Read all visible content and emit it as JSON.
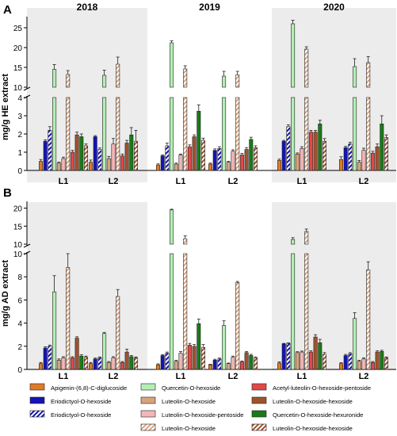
{
  "years": [
    "2018",
    "2019",
    "2020"
  ],
  "legend_items": [
    "Apigenin-(6,8)-C-diglucoside",
    "Quercetin-O-hexoside",
    "Acetyl-luteolin-O-hexoside-pentoside",
    "Eriodictyol-O-hexoside",
    "Luteolin-O-hexoside",
    "Luteolin-O-hexoside-hexoside",
    "Eriodictyol-O-hexoside",
    "Luteolin-O-hexoside-pentoside",
    "Quercetin-O-hexoside-hexuronide",
    "",
    "Luteolin-O-hexoside",
    "Luteolin-O-hexoside-hexoside"
  ],
  "chart_data": [
    {
      "type": "bar",
      "panel": "A",
      "ylabel": "mg/g HE extract",
      "upper_ylim": [
        10,
        27
      ],
      "upper_ticks": [
        10,
        15,
        20,
        25
      ],
      "lower_ylim": [
        0,
        4
      ],
      "lower_ticks": [
        0,
        1,
        2,
        3,
        4
      ],
      "groups": [
        "2018 L1",
        "2018 L2",
        "2019 L1",
        "2019 L2",
        "2020 L1",
        "2020 L2"
      ],
      "categories": [
        "L1",
        "L2",
        "L1",
        "L2",
        "L1",
        "L2"
      ],
      "series": [
        {
          "name": "Apigenin-(6,8)-C-diglucoside",
          "color": "#E07B28",
          "hatch": false,
          "values": [
            0.5,
            0.45,
            0.3,
            0.35,
            0.55,
            0.6
          ],
          "errors": [
            0.1,
            0.12,
            0.06,
            0.05,
            0.07,
            0.15
          ]
        },
        {
          "name": "Eriodictyol-O-hexoside",
          "color": "#1414B4",
          "hatch": false,
          "values": [
            1.6,
            1.85,
            0.8,
            1.1,
            1.6,
            1.25
          ],
          "errors": [
            0.08,
            0.06,
            0.05,
            0.08,
            0.05,
            0.07
          ]
        },
        {
          "name": "Eriodictyol-O-hexoside",
          "color": "#1414B4",
          "hatch": true,
          "values": [
            2.2,
            1.15,
            1.35,
            1.2,
            2.4,
            1.45
          ],
          "errors": [
            0.2,
            0.08,
            0.15,
            0.1,
            0.1,
            0.1
          ]
        },
        {
          "name": "Quercetin-O-hexoside",
          "color": "#B4EEB4",
          "hatch": false,
          "values": [
            14.5,
            13,
            21.2,
            12.8,
            26,
            15.2
          ],
          "errors": [
            1.2,
            1.3,
            0.5,
            1.2,
            0.9,
            2.0
          ]
        },
        {
          "name": "Luteolin-O-hexoside",
          "color": "#D9A37C",
          "hatch": false,
          "values": [
            0.4,
            0.65,
            0.35,
            0.45,
            0.9,
            0.45
          ],
          "errors": [
            0.05,
            0.12,
            0.05,
            0.05,
            0.06,
            0.1
          ]
        },
        {
          "name": "Luteolin-O-hexoside-pentoside",
          "color": "#F4B6B6",
          "hatch": false,
          "values": [
            0.65,
            1.45,
            0.85,
            1.05,
            1.2,
            1.1
          ],
          "errors": [
            0.08,
            0.3,
            0.05,
            0.08,
            0.1,
            0.12
          ]
        },
        {
          "name": "Luteolin-O-hexoside",
          "color": "#D9A37C",
          "hatch": true,
          "values": [
            13.2,
            15.8,
            14.6,
            13.1,
            19.6,
            16.2
          ],
          "errors": [
            1.0,
            1.8,
            0.8,
            0.9,
            0.6,
            1.5
          ]
        },
        {
          "name": "Acetyl-luteolin-O-hexoside-pentoside",
          "color": "#E24848",
          "hatch": false,
          "values": [
            1.0,
            0.8,
            1.3,
            0.85,
            2.1,
            0.95
          ],
          "errors": [
            0.1,
            0.1,
            0.1,
            0.08,
            0.1,
            0.1
          ]
        },
        {
          "name": "Luteolin-O-hexoside-hexoside",
          "color": "#A0522D",
          "hatch": false,
          "values": [
            1.95,
            1.5,
            1.85,
            1.15,
            2.1,
            1.3
          ],
          "errors": [
            0.15,
            0.15,
            0.1,
            0.1,
            0.1,
            0.15
          ]
        },
        {
          "name": "Quercetin-O-hexoside-hexuronide",
          "color": "#1A7A1A",
          "hatch": false,
          "values": [
            1.85,
            1.95,
            3.25,
            1.7,
            2.55,
            2.55
          ],
          "errors": [
            0.15,
            0.4,
            0.35,
            0.12,
            0.2,
            0.45
          ]
        },
        {
          "name": "Luteolin-O-hexoside-hexoside",
          "color": "#A0522D",
          "hatch": true,
          "values": [
            1.35,
            1.6,
            1.65,
            1.25,
            1.6,
            1.8
          ],
          "errors": [
            0.1,
            0.6,
            0.12,
            0.1,
            0.15,
            0.15
          ]
        }
      ]
    },
    {
      "type": "bar",
      "panel": "B",
      "ylabel": "mg/g AD extract",
      "upper_ylim": [
        10,
        21
      ],
      "upper_ticks": [
        10,
        15,
        20
      ],
      "lower_ylim": [
        0,
        10
      ],
      "lower_ticks": [
        0,
        2,
        4,
        6,
        8,
        10
      ],
      "groups": [
        "2018 L1",
        "2018 L2",
        "2019 L1",
        "2019 L2",
        "2020 L1",
        "2020 L2"
      ],
      "categories": [
        "L1",
        "L2",
        "L1",
        "L2",
        "L1",
        "L2"
      ],
      "series": [
        {
          "name": "Apigenin-(6,8)-C-diglucoside",
          "color": "#E07B28",
          "hatch": false,
          "values": [
            0.5,
            0.5,
            0.4,
            0.4,
            0.55,
            0.5
          ],
          "errors": [
            0.1,
            0.1,
            0.08,
            0.05,
            0.1,
            0.08
          ]
        },
        {
          "name": "Eriodictyol-O-hexoside",
          "color": "#1414B4",
          "hatch": false,
          "values": [
            1.85,
            0.9,
            1.2,
            0.8,
            2.2,
            1.2
          ],
          "errors": [
            0.1,
            0.08,
            0.08,
            0.08,
            0.05,
            0.1
          ]
        },
        {
          "name": "Eriodictyol-O-hexoside",
          "color": "#1414B4",
          "hatch": true,
          "values": [
            2.0,
            1.0,
            1.4,
            0.9,
            2.25,
            1.35
          ],
          "errors": [
            0.1,
            0.08,
            0.1,
            0.08,
            0.05,
            0.1
          ]
        },
        {
          "name": "Quercetin-O-hexoside",
          "color": "#B4EEB4",
          "hatch": false,
          "values": [
            6.7,
            3.1,
            19.5,
            3.8,
            11.3,
            4.4
          ],
          "errors": [
            1.4,
            0.1,
            0.2,
            0.4,
            0.5,
            0.5
          ]
        },
        {
          "name": "Luteolin-O-hexoside",
          "color": "#D9A37C",
          "hatch": false,
          "values": [
            0.8,
            0.6,
            0.7,
            0.5,
            1.45,
            0.7
          ],
          "errors": [
            0.1,
            0.08,
            0.08,
            0.05,
            0.08,
            0.08
          ]
        },
        {
          "name": "Luteolin-O-hexoside-pentoside",
          "color": "#F4B6B6",
          "hatch": false,
          "values": [
            1.0,
            1.0,
            1.4,
            1.05,
            1.5,
            0.9
          ],
          "errors": [
            0.1,
            0.1,
            0.15,
            0.1,
            0.08,
            0.1
          ]
        },
        {
          "name": "Luteolin-O-hexoside",
          "color": "#D9A37C",
          "hatch": true,
          "values": [
            8.8,
            6.3,
            11.5,
            7.5,
            13.5,
            8.6
          ],
          "errors": [
            1.2,
            0.6,
            0.8,
            0.1,
            0.7,
            0.7
          ]
        },
        {
          "name": "Acetyl-luteolin-O-hexoside-pentoside",
          "color": "#E24848",
          "hatch": false,
          "values": [
            1.0,
            0.6,
            2.1,
            0.65,
            1.5,
            0.6
          ],
          "errors": [
            0.1,
            0.08,
            0.15,
            0.08,
            0.1,
            0.08
          ]
        },
        {
          "name": "Luteolin-O-hexoside-hexoside",
          "color": "#A0522D",
          "hatch": false,
          "values": [
            2.7,
            1.5,
            2.0,
            1.45,
            2.8,
            1.5
          ],
          "errors": [
            0.12,
            0.25,
            0.15,
            0.1,
            0.2,
            0.1
          ]
        },
        {
          "name": "Quercetin-O-hexoside-hexuronide",
          "color": "#1A7A1A",
          "hatch": false,
          "values": [
            1.15,
            1.1,
            3.95,
            1.2,
            2.3,
            1.55
          ],
          "errors": [
            0.12,
            0.1,
            0.4,
            0.1,
            0.3,
            0.1
          ]
        },
        {
          "name": "Luteolin-O-hexoside-hexoside",
          "color": "#A0522D",
          "hatch": true,
          "values": [
            1.05,
            1.0,
            1.9,
            1.0,
            1.3,
            1.0
          ],
          "errors": [
            0.1,
            0.08,
            0.25,
            0.08,
            0.15,
            0.08
          ]
        }
      ]
    }
  ]
}
